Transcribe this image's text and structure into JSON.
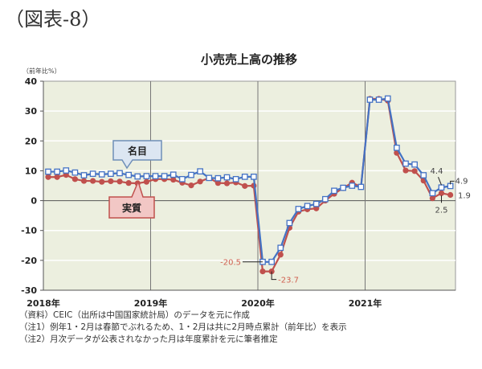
{
  "figure_label": "（図表-8）",
  "chart_data": {
    "type": "line",
    "title": "小売売上高の推移",
    "ylabel": "（前年比%）",
    "xlabel": "",
    "ylim": [
      -30,
      40
    ],
    "yticks": [
      40,
      30,
      20,
      10,
      0,
      -10,
      -20,
      -30
    ],
    "xticks": [
      "2018年",
      "2019年",
      "2020年",
      "2021年"
    ],
    "grid": true,
    "x_start": "2018-01",
    "x_end": "2021-10",
    "series": [
      {
        "name": "名目",
        "color": "#4472c4",
        "marker": "square-hollow",
        "values": [
          9.7,
          9.7,
          10.1,
          9.4,
          8.5,
          9.0,
          8.8,
          9.0,
          9.2,
          8.6,
          8.1,
          8.2,
          8.2,
          8.2,
          8.7,
          7.2,
          8.6,
          9.8,
          7.6,
          7.5,
          7.8,
          7.2,
          8.0,
          8.0,
          -20.5,
          -20.5,
          -15.8,
          -7.5,
          -2.8,
          -1.8,
          -1.1,
          0.5,
          3.3,
          4.3,
          5.0,
          4.6,
          33.8,
          33.8,
          34.2,
          17.7,
          12.4,
          12.1,
          8.5,
          2.5,
          4.4,
          4.9
        ]
      },
      {
        "name": "実質",
        "color": "#c0504d",
        "marker": "circle-filled",
        "values": [
          7.9,
          7.9,
          8.6,
          7.2,
          6.6,
          6.6,
          6.3,
          6.5,
          6.4,
          5.9,
          5.8,
          6.3,
          7.2,
          7.2,
          7.0,
          6.0,
          5.1,
          6.4,
          7.6,
          5.9,
          5.8,
          6.1,
          4.9,
          5.0,
          -23.7,
          -23.7,
          -18.1,
          -9.1,
          -3.7,
          -2.9,
          -2.6,
          0.0,
          2.3,
          4.2,
          6.0,
          4.6,
          34.1,
          34.1,
          33.5,
          16.0,
          10.1,
          9.9,
          6.7,
          0.8,
          2.5,
          1.9
        ]
      }
    ],
    "annotations": [
      {
        "text": "-20.5",
        "series": "名目",
        "point": "2020-01"
      },
      {
        "text": "-23.7",
        "series": "実質",
        "point": "2020-02"
      },
      {
        "text": "4.4",
        "series": "名目",
        "point": "2021-09"
      },
      {
        "text": "4.9",
        "series": "名目",
        "point": "2021-10"
      },
      {
        "text": "2.5",
        "series": "実質",
        "point": "2021-09"
      },
      {
        "text": "1.9",
        "series": "実質",
        "point": "2021-10"
      }
    ],
    "callouts": [
      {
        "label": "名目",
        "series": "名目"
      },
      {
        "label": "実質",
        "series": "実質"
      }
    ]
  },
  "colors": {
    "plot_bg": "#ecefdf",
    "grid": "#ffffff",
    "axis": "#666666",
    "nominal": "#4472c4",
    "real": "#c0504d",
    "callout_nominal_bg": "#dce6f2",
    "callout_nominal_border": "#6f8fb8",
    "callout_real_bg": "#f2c7c5",
    "callout_real_border": "#c0504d",
    "annotation_red": "#d06050"
  },
  "notes": [
    "（資料）CEIC（出所は中国国家統計局）のデータを元に作成",
    "（注1）例年1・2月は春節でぶれるため、1・2月は共に2月時点累計（前年比）を表示",
    "（注2）月次データが公表されなかった月は年度累計を元に筆者推定"
  ]
}
